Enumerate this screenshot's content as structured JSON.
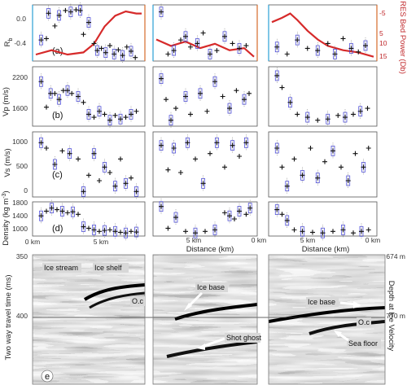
{
  "chart_data": {
    "type": "scatter",
    "panel_labels": [
      "(a)",
      "(b)",
      "(c)",
      "(d)",
      "e"
    ],
    "ylabels": {
      "a": "R",
      "a_sub": "b",
      "a_right": "RES Bed Power (Db)",
      "b": "Vp (m/s)",
      "c": "Vs (m/s)",
      "d": "Density (kg m",
      "d_sup": "-3",
      "d_end": ")",
      "e": "Two way travel time (ms)",
      "e_right": "Depth at Ice Velocity"
    },
    "xlabel": "Distance (km)",
    "col_xticks": [
      {
        "left": "0 km",
        "right": "5 km"
      },
      {
        "left": "5 km",
        "right": "0 km"
      },
      {
        "left": "5 km",
        "right": "0 km"
      }
    ],
    "yticks": {
      "a": [
        "0.0",
        "-0.4"
      ],
      "a_right": [
        "-5",
        "5",
        "10",
        "15"
      ],
      "b": [
        "2200",
        "1600"
      ],
      "c": [
        "1000",
        "500",
        "0"
      ],
      "d": [
        "1800",
        "1400",
        "1000"
      ],
      "e": [
        "350",
        "400"
      ],
      "e_right": [
        "674 m",
        "770 m"
      ]
    },
    "panels": {
      "a": {
        "ylim": [
          -0.6,
          0.2
        ],
        "red_ylim": [
          16,
          -10
        ],
        "series": [
          {
            "points": [
              [
                0.05,
                -0.3
              ],
              [
                0.1,
                -0.28
              ],
              [
                0.12,
                0.08
              ],
              [
                0.18,
                -0.1
              ],
              [
                0.22,
                0.05
              ],
              [
                0.28,
                0.12
              ],
              [
                0.33,
                0.1
              ],
              [
                0.38,
                0.13
              ],
              [
                0.42,
                0.12
              ],
              [
                0.45,
                -0.22
              ],
              [
                0.5,
                -0.05
              ],
              [
                0.55,
                -0.35
              ],
              [
                0.58,
                -0.45
              ],
              [
                0.62,
                -0.42
              ],
              [
                0.66,
                -0.48
              ],
              [
                0.7,
                -0.38
              ],
              [
                0.74,
                -0.5
              ],
              [
                0.78,
                -0.44
              ],
              [
                0.82,
                -0.52
              ],
              [
                0.86,
                -0.4
              ],
              [
                0.9,
                -0.46
              ],
              [
                0.94,
                -0.55
              ]
            ],
            "red": [
              [
                0,
                13
              ],
              [
                0.15,
                11
              ],
              [
                0.3,
                13
              ],
              [
                0.45,
                12
              ],
              [
                0.55,
                8
              ],
              [
                0.65,
                0
              ],
              [
                0.75,
                -5
              ],
              [
                0.85,
                -7
              ],
              [
                0.95,
                -6
              ],
              [
                1,
                -6
              ]
            ]
          },
          {
            "points": [
              [
                0.05,
                0.1
              ],
              [
                0.12,
                -0.5
              ],
              [
                0.18,
                -0.45
              ],
              [
                0.25,
                -0.3
              ],
              [
                0.3,
                -0.25
              ],
              [
                0.35,
                -0.4
              ],
              [
                0.42,
                -0.35
              ],
              [
                0.48,
                -0.2
              ],
              [
                0.55,
                -0.5
              ],
              [
                0.62,
                -0.45
              ],
              [
                0.7,
                -0.25
              ],
              [
                0.78,
                -0.35
              ],
              [
                0.85,
                -0.42
              ],
              [
                0.92,
                -0.38
              ]
            ],
            "red": [
              [
                0,
                6
              ],
              [
                0.15,
                9
              ],
              [
                0.3,
                7
              ],
              [
                0.45,
                10
              ],
              [
                0.6,
                8
              ],
              [
                0.75,
                11
              ],
              [
                0.9,
                10
              ],
              [
                1,
                14
              ]
            ]
          },
          {
            "points": [
              [
                0.05,
                -0.4
              ],
              [
                0.15,
                -0.5
              ],
              [
                0.25,
                -0.3
              ],
              [
                0.35,
                -0.42
              ],
              [
                0.45,
                -0.45
              ],
              [
                0.55,
                -0.35
              ],
              [
                0.62,
                -0.5
              ],
              [
                0.7,
                -0.28
              ],
              [
                0.78,
                -0.42
              ],
              [
                0.85,
                -0.47
              ],
              [
                0.92,
                -0.38
              ]
            ],
            "red": [
              [
                0,
                -2
              ],
              [
                0.1,
                -4
              ],
              [
                0.18,
                -6
              ],
              [
                0.25,
                -3
              ],
              [
                0.35,
                2
              ],
              [
                0.45,
                6
              ],
              [
                0.55,
                9
              ],
              [
                0.7,
                11
              ],
              [
                0.85,
                12
              ],
              [
                1,
                14
              ]
            ]
          }
        ]
      },
      "b": {
        "ylim": [
          1400,
          2400
        ],
        "series": [
          {
            "points": [
              [
                0.05,
                2150
              ],
              [
                0.1,
                1720
              ],
              [
                0.14,
                1950
              ],
              [
                0.18,
                1950
              ],
              [
                0.22,
                1850
              ],
              [
                0.26,
                2000
              ],
              [
                0.3,
                2000
              ],
              [
                0.34,
                1950
              ],
              [
                0.4,
                1900
              ],
              [
                0.45,
                1800
              ],
              [
                0.5,
                1600
              ],
              [
                0.55,
                1550
              ],
              [
                0.6,
                1650
              ],
              [
                0.65,
                1600
              ],
              [
                0.7,
                1500
              ],
              [
                0.75,
                1580
              ],
              [
                0.8,
                1520
              ],
              [
                0.85,
                1550
              ],
              [
                0.9,
                1600
              ],
              [
                0.95,
                1650
              ]
            ]
          },
          {
            "points": [
              [
                0.05,
                2200
              ],
              [
                0.1,
                1850
              ],
              [
                0.15,
                1500
              ],
              [
                0.2,
                1700
              ],
              [
                0.3,
                1900
              ],
              [
                0.35,
                1600
              ],
              [
                0.45,
                1950
              ],
              [
                0.52,
                1650
              ],
              [
                0.6,
                2150
              ],
              [
                0.68,
                1900
              ],
              [
                0.75,
                1700
              ],
              [
                0.82,
                2000
              ],
              [
                0.9,
                1850
              ],
              [
                0.95,
                1950
              ]
            ]
          },
          {
            "points": [
              [
                0.05,
                2250
              ],
              [
                0.1,
                2050
              ],
              [
                0.18,
                1800
              ],
              [
                0.25,
                1600
              ],
              [
                0.35,
                1550
              ],
              [
                0.45,
                1500
              ],
              [
                0.55,
                1520
              ],
              [
                0.65,
                1580
              ],
              [
                0.72,
                1550
              ],
              [
                0.8,
                1600
              ],
              [
                0.87,
                1650
              ],
              [
                0.94,
                1700
              ]
            ]
          }
        ]
      },
      "c": {
        "ylim": [
          0,
          1200
        ],
        "series": [
          {
            "points": [
              [
                0.05,
                1000
              ],
              [
                0.1,
                900
              ],
              [
                0.18,
                600
              ],
              [
                0.25,
                850
              ],
              [
                0.32,
                800
              ],
              [
                0.4,
                700
              ],
              [
                0.45,
                100
              ],
              [
                0.5,
                400
              ],
              [
                0.55,
                800
              ],
              [
                0.6,
                300
              ],
              [
                0.65,
                550
              ],
              [
                0.7,
                450
              ],
              [
                0.75,
                200
              ],
              [
                0.8,
                700
              ],
              [
                0.85,
                250
              ],
              [
                0.9,
                350
              ],
              [
                0.95,
                100
              ]
            ]
          },
          {
            "points": [
              [
                0.05,
                950
              ],
              [
                0.12,
                500
              ],
              [
                0.18,
                900
              ],
              [
                0.25,
                450
              ],
              [
                0.32,
                1000
              ],
              [
                0.4,
                700
              ],
              [
                0.48,
                250
              ],
              [
                0.55,
                800
              ],
              [
                0.62,
                1000
              ],
              [
                0.7,
                550
              ],
              [
                0.78,
                950
              ],
              [
                0.85,
                750
              ],
              [
                0.92,
                1000
              ]
            ]
          },
          {
            "points": [
              [
                0.05,
                900
              ],
              [
                0.1,
                550
              ],
              [
                0.15,
                200
              ],
              [
                0.22,
                700
              ],
              [
                0.3,
                400
              ],
              [
                0.38,
                900
              ],
              [
                0.45,
                350
              ],
              [
                0.52,
                650
              ],
              [
                0.6,
                850
              ],
              [
                0.68,
                550
              ],
              [
                0.75,
                300
              ],
              [
                0.82,
                800
              ],
              [
                0.9,
                550
              ],
              [
                0.95,
                900
              ]
            ]
          }
        ]
      },
      "d": {
        "ylim": [
          900,
          2000
        ],
        "series": [
          {
            "points": [
              [
                0.05,
                1550
              ],
              [
                0.1,
                1700
              ],
              [
                0.15,
                1800
              ],
              [
                0.2,
                1750
              ],
              [
                0.25,
                1700
              ],
              [
                0.3,
                1650
              ],
              [
                0.35,
                1680
              ],
              [
                0.4,
                1600
              ],
              [
                0.45,
                1200
              ],
              [
                0.5,
                1150
              ],
              [
                0.55,
                1100
              ],
              [
                0.6,
                1050
              ],
              [
                0.65,
                1080
              ],
              [
                0.7,
                1100
              ],
              [
                0.75,
                1050
              ],
              [
                0.8,
                1020
              ],
              [
                0.85,
                1000
              ],
              [
                0.9,
                1050
              ],
              [
                0.95,
                1030
              ]
            ]
          },
          {
            "points": [
              [
                0.05,
                1850
              ],
              [
                0.12,
                1150
              ],
              [
                0.2,
                1500
              ],
              [
                0.3,
                1050
              ],
              [
                0.4,
                1000
              ],
              [
                0.5,
                1050
              ],
              [
                0.6,
                1100
              ],
              [
                0.7,
                1650
              ],
              [
                0.75,
                1550
              ],
              [
                0.8,
                1450
              ],
              [
                0.85,
                1700
              ],
              [
                0.92,
                1600
              ],
              [
                0.96,
                1800
              ]
            ]
          },
          {
            "points": [
              [
                0.05,
                1750
              ],
              [
                0.1,
                1600
              ],
              [
                0.15,
                1400
              ],
              [
                0.22,
                1100
              ],
              [
                0.3,
                1050
              ],
              [
                0.4,
                1020
              ],
              [
                0.5,
                1000
              ],
              [
                0.6,
                1050
              ],
              [
                0.7,
                1100
              ],
              [
                0.8,
                1000
              ],
              [
                0.88,
                1050
              ],
              [
                0.95,
                1100
              ]
            ]
          }
        ]
      }
    },
    "seismic_annotations": [
      {
        "text": "Ice stream"
      },
      {
        "text": "Ice shelf"
      },
      {
        "text": "O.c"
      },
      {
        "text": "Ice base"
      },
      {
        "text": "Shot ghost"
      },
      {
        "text": "Ice base"
      },
      {
        "text": "O.c"
      },
      {
        "text": "Sea floor"
      }
    ],
    "colors": {
      "red_line": "#d62a2a",
      "box": "#3c3cd6",
      "marker": "#111111",
      "axis_left": "#2aa0d6",
      "axis_right": "#d66a2a"
    }
  }
}
